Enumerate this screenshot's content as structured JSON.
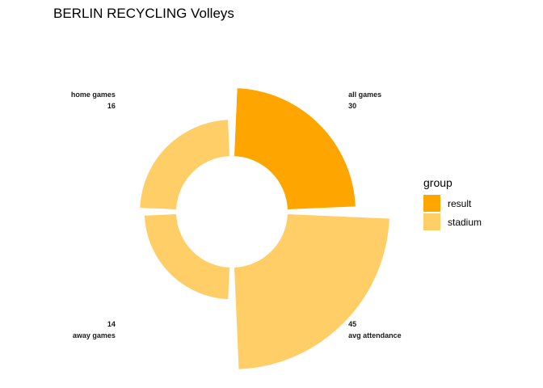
{
  "chart_data": {
    "type": "pie",
    "title": "BERLIN RECYCLING Volleys",
    "legend_title": "group",
    "legend_position": "right",
    "groups": [
      {
        "name": "result",
        "color": "#FFA500"
      },
      {
        "name": "stadium",
        "color": "#FFCE66"
      }
    ],
    "segments": [
      {
        "label": "all games",
        "value": 30,
        "group": "result"
      },
      {
        "label": "avg attendance",
        "value": 45,
        "group": "stadium"
      },
      {
        "label": "away games",
        "value": 14,
        "group": "stadium"
      },
      {
        "label": "home games",
        "value": 16,
        "group": "stadium"
      }
    ]
  }
}
